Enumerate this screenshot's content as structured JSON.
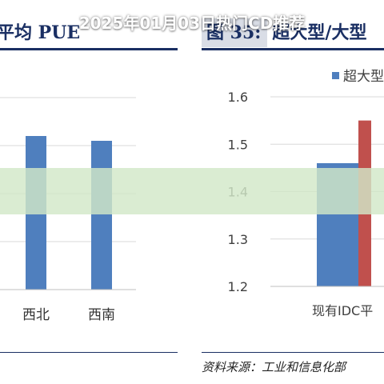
{
  "banner": {
    "text": "2025年01月03日热门CD推荐"
  },
  "figures": {
    "left": {
      "title": "平均 PUE",
      "source": ""
    },
    "right": {
      "title_num": "图 35:",
      "title_text": "超大型/大型",
      "source": "资料来源：工业和信息化部"
    }
  },
  "colors": {
    "series_blue": "#4f7fbe",
    "series_red": "#c0504d",
    "rule": "#1a2f63",
    "grid": "#d9d9d9"
  },
  "chart_data": [
    {
      "type": "bar",
      "title": "平均 PUE",
      "categories": [
        "西北",
        "西南"
      ],
      "values": [
        1.52,
        1.51
      ],
      "series": [
        {
          "name": "",
          "values": [
            1.52,
            1.51
          ]
        }
      ],
      "ylim": [
        1.2,
        1.6
      ],
      "grid": true
    },
    {
      "type": "bar",
      "title": "超大型/大型",
      "categories": [
        "现有IDC平"
      ],
      "series": [
        {
          "name": "超大型",
          "values": [
            1.46
          ]
        },
        {
          "name": "",
          "values": [
            1.55
          ]
        }
      ],
      "yticks": [
        1.2,
        1.3,
        1.4,
        1.5,
        1.6
      ],
      "ylim": [
        1.2,
        1.6
      ],
      "legend": "top-right",
      "grid": true
    }
  ]
}
